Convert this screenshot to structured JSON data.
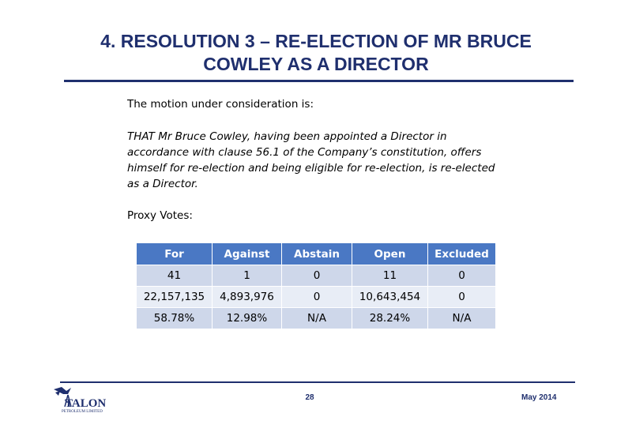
{
  "slide": {
    "title_line1": "4. RESOLUTION 3 – RE-ELECTION OF MR BRUCE",
    "title_line2": "COWLEY AS A DIRECTOR",
    "intro": "The motion under consideration is:",
    "motion_lines": [
      "THAT Mr Bruce Cowley, having been appointed a Director in",
      "accordance with clause 56.1 of the Company’s constitution, offers",
      "himself for re-election and being eligible for re-election, is re-elected",
      "as a Director."
    ],
    "proxy_label": "Proxy Votes:"
  },
  "votes_table": {
    "headers": [
      "For",
      "Against",
      "Abstain",
      "Open",
      "Excluded"
    ],
    "rows": [
      [
        "41",
        "1",
        "0",
        "11",
        "0"
      ],
      [
        "22,157,135",
        "4,893,976",
        "0",
        "10,643,454",
        "0"
      ],
      [
        "58.78%",
        "12.98%",
        "N/A",
        "28.24%",
        "N/A"
      ]
    ]
  },
  "footer": {
    "page_number": "28",
    "date": "May 2014",
    "logo_text": "TALON",
    "logo_subtext": "PETROLEUM LIMITED",
    "logo_icon": "eagle-derrick-icon"
  },
  "colors": {
    "navy": "#1f2f6e",
    "header_blue": "#4a78c4",
    "row_dark": "#ced7ea",
    "row_light": "#e8edf6"
  }
}
